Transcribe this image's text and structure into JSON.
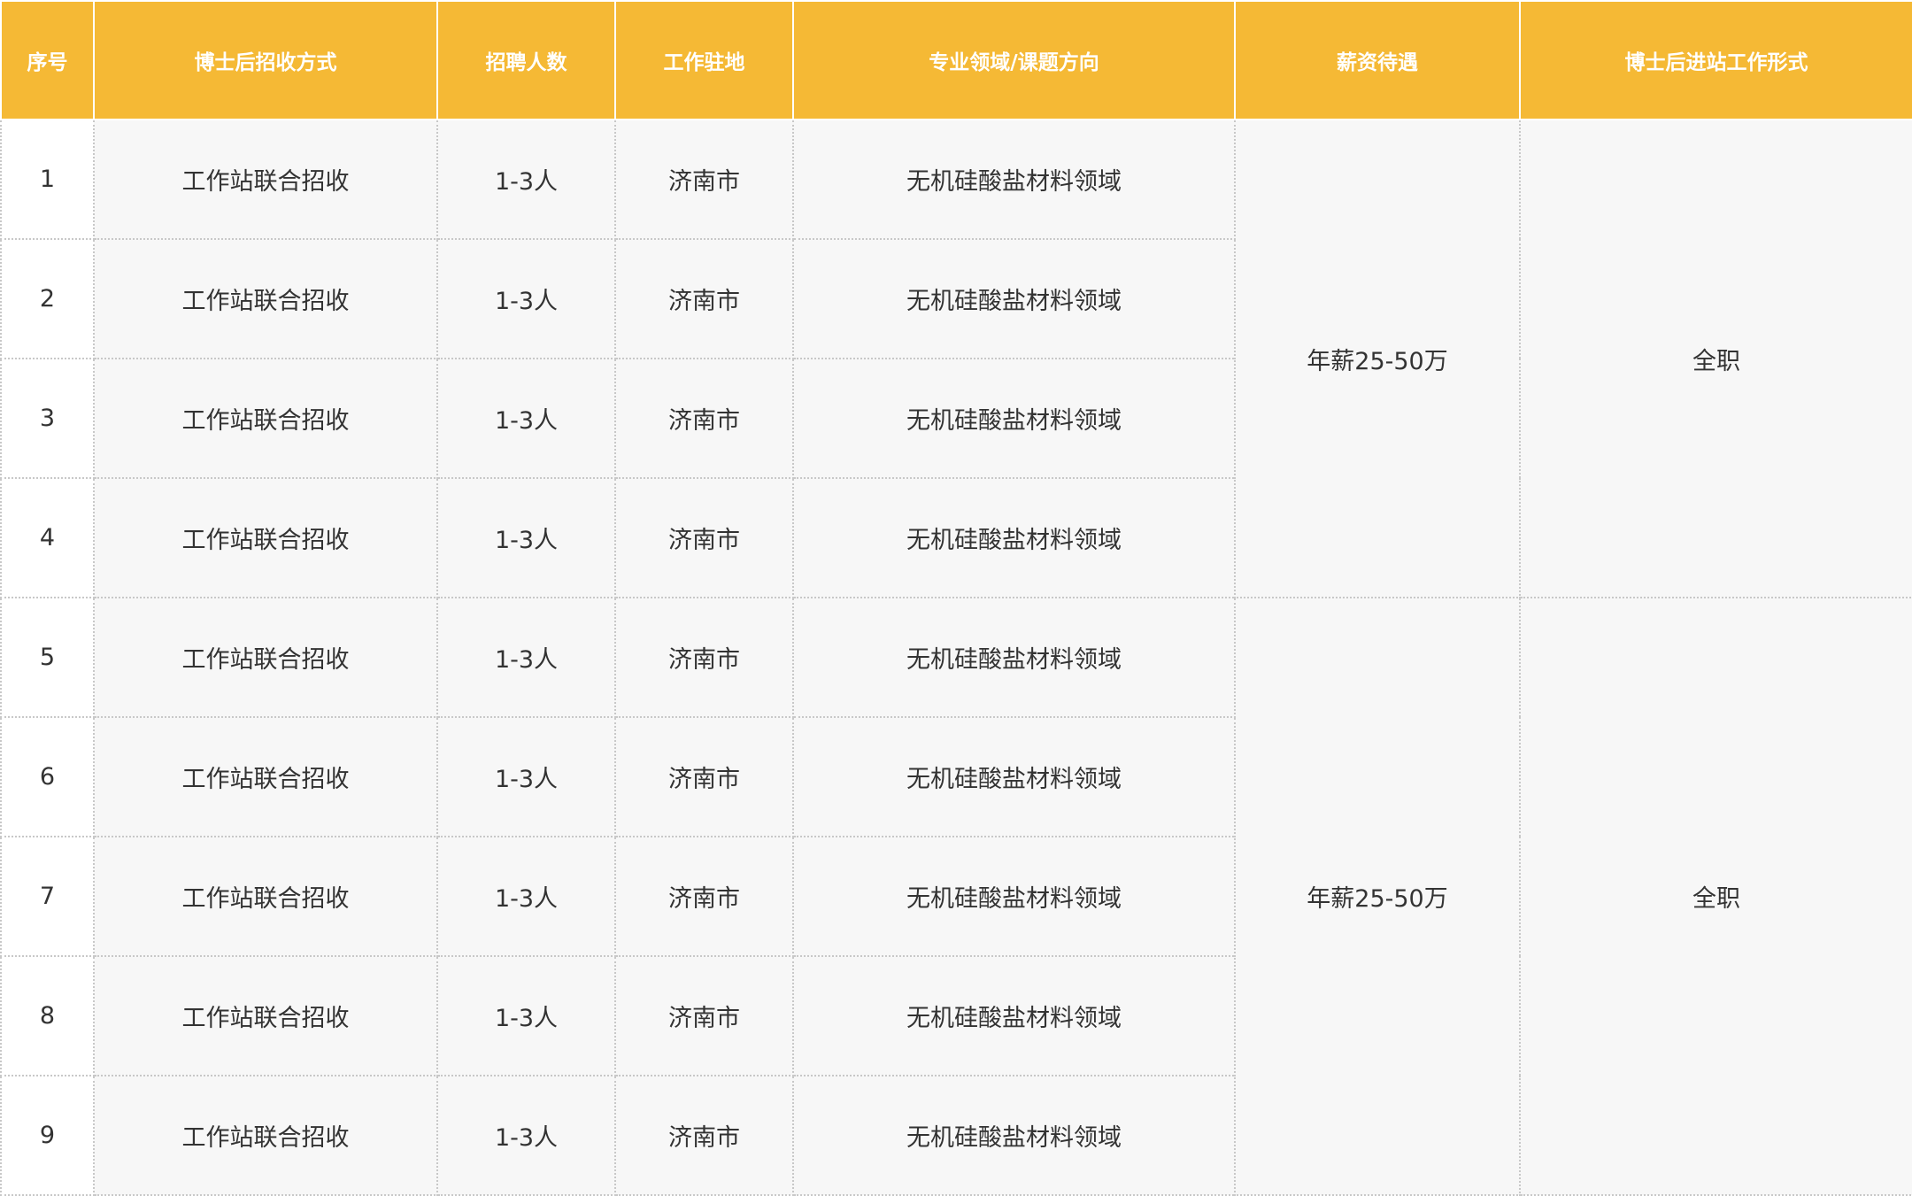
{
  "colors": {
    "header_bg": "#f5b935",
    "header_text": "#ffffff",
    "cell_bg": "#f7f7f7",
    "text": "#333333"
  },
  "table": {
    "headers": [
      "序号",
      "博士后招收方式",
      "招聘人数",
      "工作驻地",
      "专业领域/课题方向",
      "薪资待遇",
      "博士后进站工作形式"
    ],
    "rows": [
      {
        "index": "1",
        "method": "工作站联合招收",
        "count": "1-3人",
        "location": "济南市",
        "field": "无机硅酸盐材料领域"
      },
      {
        "index": "2",
        "method": "工作站联合招收",
        "count": "1-3人",
        "location": "济南市",
        "field": "无机硅酸盐材料领域"
      },
      {
        "index": "3",
        "method": "工作站联合招收",
        "count": "1-3人",
        "location": "济南市",
        "field": "无机硅酸盐材料领域"
      },
      {
        "index": "4",
        "method": "工作站联合招收",
        "count": "1-3人",
        "location": "济南市",
        "field": "无机硅酸盐材料领域"
      },
      {
        "index": "5",
        "method": "工作站联合招收",
        "count": "1-3人",
        "location": "济南市",
        "field": "无机硅酸盐材料领域"
      },
      {
        "index": "6",
        "method": "工作站联合招收",
        "count": "1-3人",
        "location": "济南市",
        "field": "无机硅酸盐材料领域"
      },
      {
        "index": "7",
        "method": "工作站联合招收",
        "count": "1-3人",
        "location": "济南市",
        "field": "无机硅酸盐材料领域"
      },
      {
        "index": "8",
        "method": "工作站联合招收",
        "count": "1-3人",
        "location": "济南市",
        "field": "无机硅酸盐材料领域"
      },
      {
        "index": "9",
        "method": "工作站联合招收",
        "count": "1-3人",
        "location": "济南市",
        "field": "无机硅酸盐材料领域"
      }
    ],
    "groups": [
      {
        "salary": "年薪25-50万",
        "form": "全职"
      },
      {
        "salary": "年薪25-50万",
        "form": "全职"
      }
    ]
  }
}
